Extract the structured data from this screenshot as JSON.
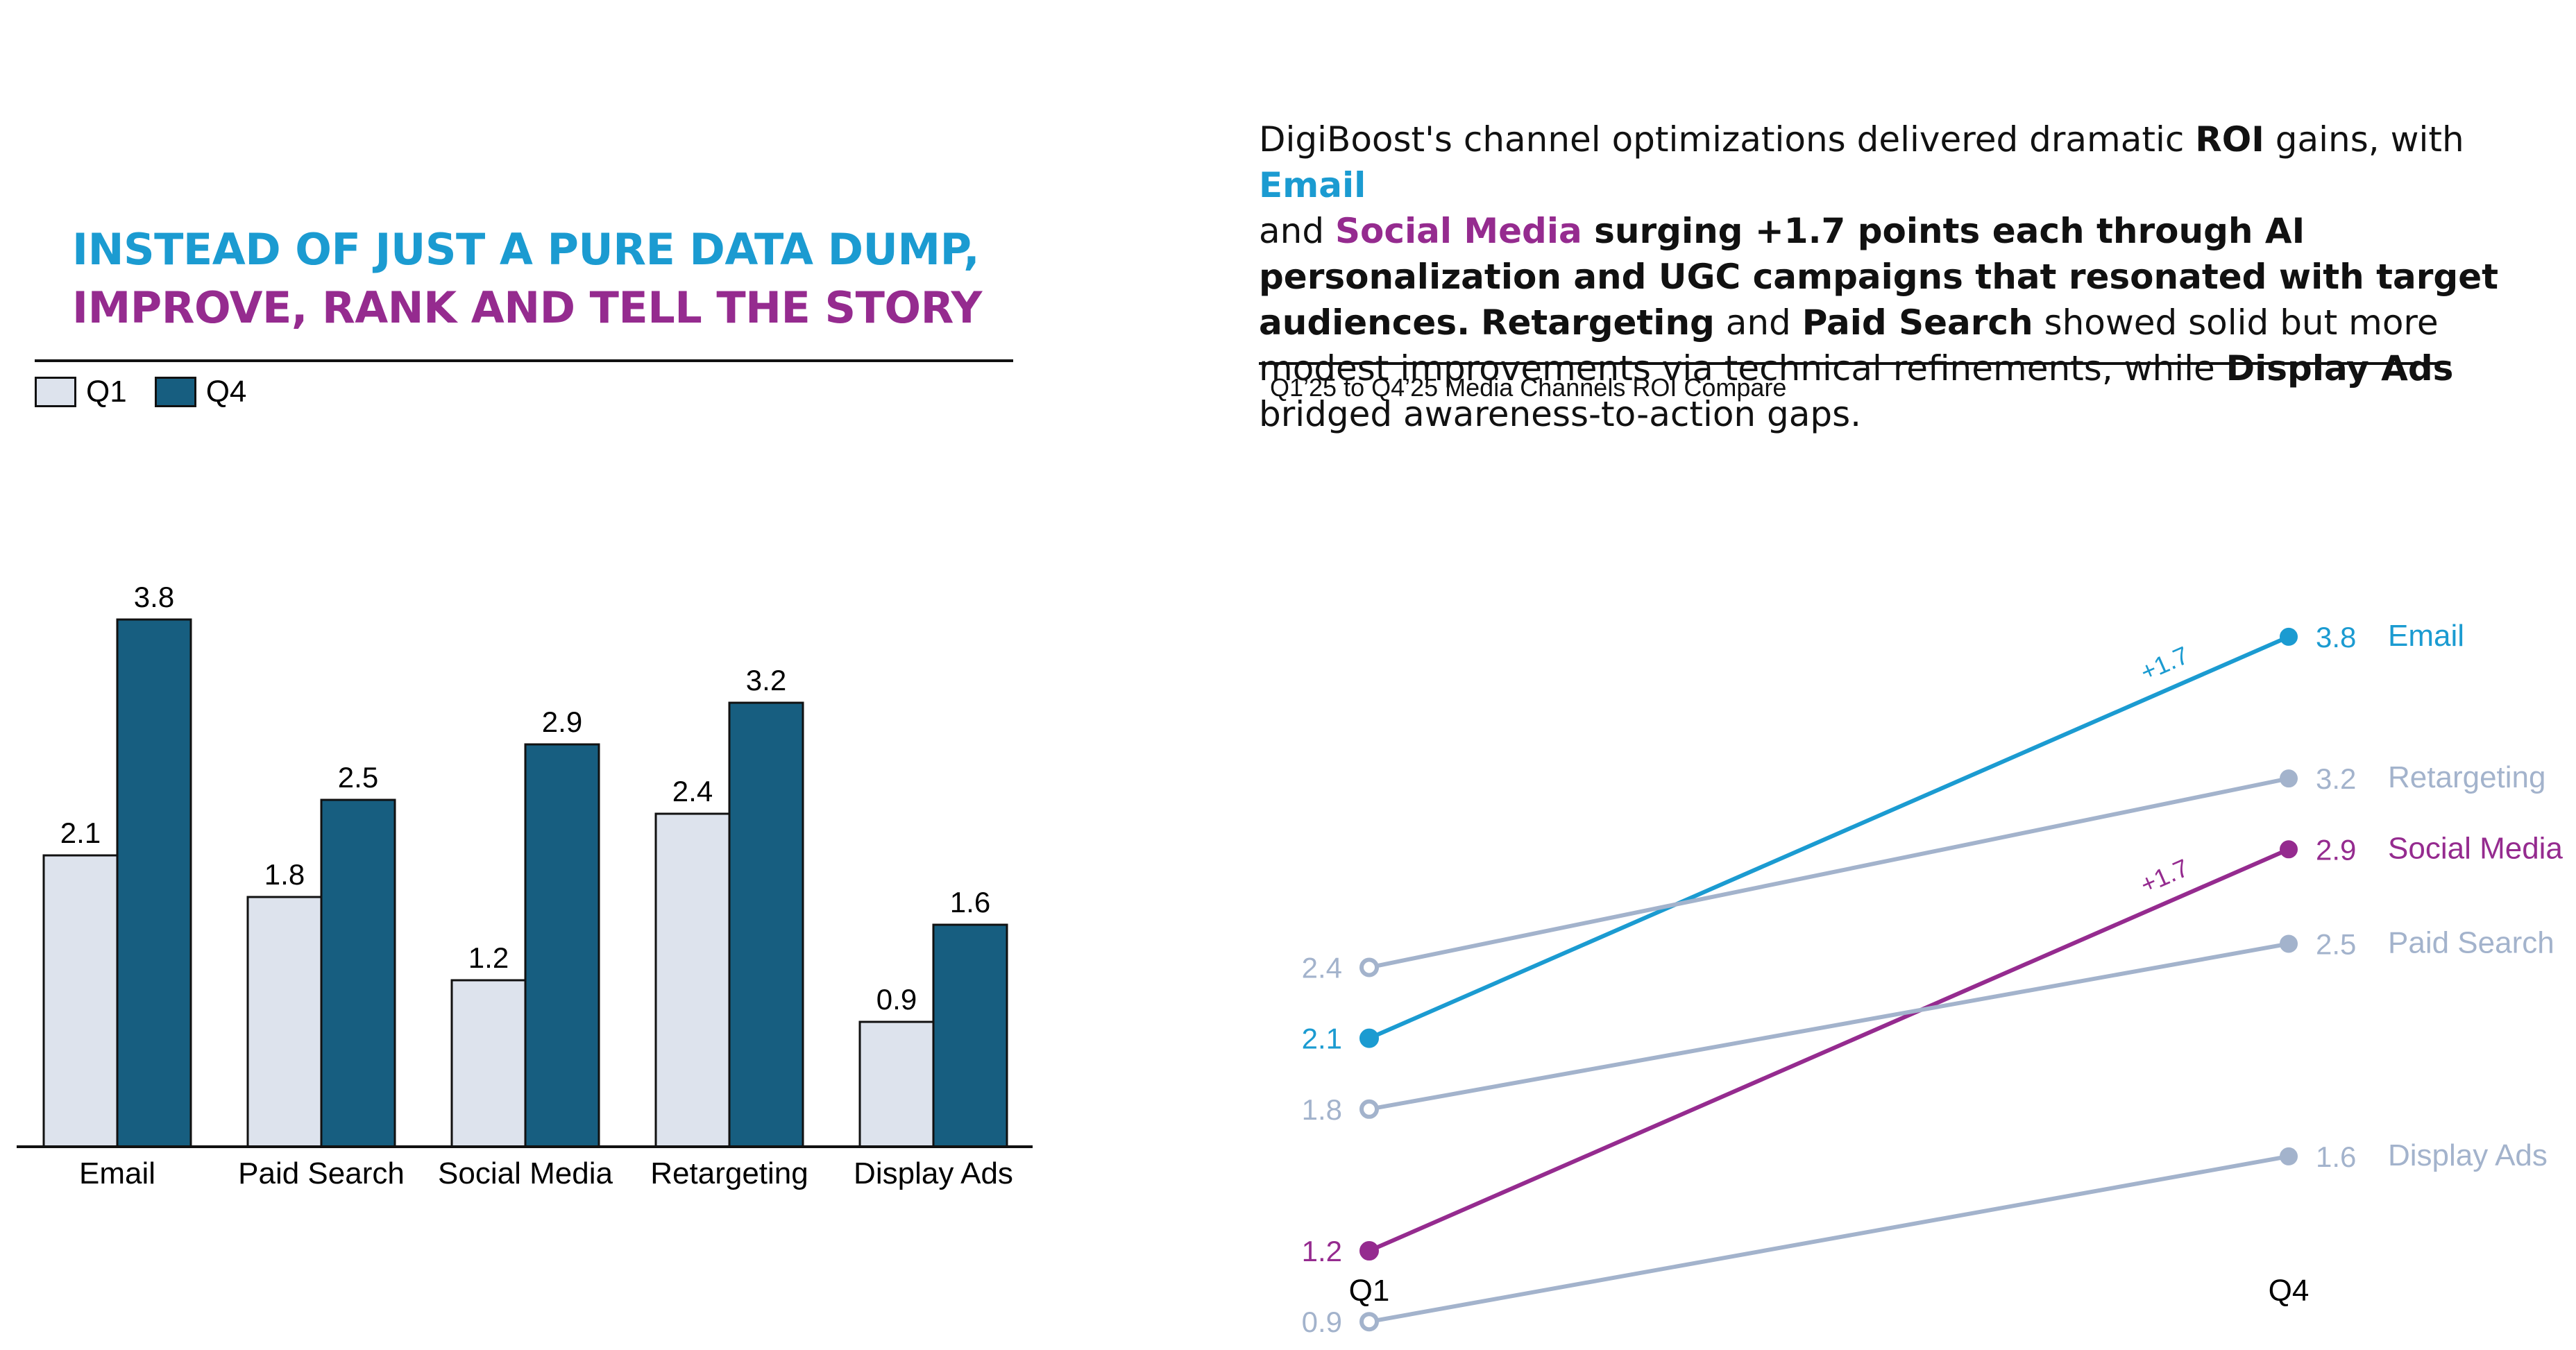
{
  "headline": {
    "line1": "INSTEAD OF JUST A PURE DATA DUMP,",
    "line2": "IMPROVE, RANK AND TELL THE STORY"
  },
  "colors": {
    "q1_fill": "#dde3ed",
    "q4_fill": "#175e80",
    "email": "#1b9bd1",
    "social": "#952b8f",
    "muted": "#a3b3cc"
  },
  "story": {
    "p1": "DigiBoost's channel optimizations delivered dramatic ",
    "roi": "ROI",
    "p2": " gains, with ",
    "email": "Email",
    "p3": " and ",
    "social": "Social Media",
    "p4": " surging +1.7 points each through AI personalization and UGC campaigns that resonated with target audiences.",
    "p5": " ",
    "retargeting": "Retargeting",
    "p6": " and ",
    "paid": "Paid Search",
    "p7": " showed solid but more modest improvements via technical refinements, while ",
    "display": "Display Ads",
    "p8": " bridged awareness-to-action gaps."
  },
  "subtitle": "Q1’25 to Q4’25  Media Channels ROI Compare",
  "chart_data": [
    {
      "type": "bar",
      "categories": [
        "Email",
        "Paid Search",
        "Social Media",
        "Retargeting",
        "Display Ads"
      ],
      "series": [
        {
          "name": "Q1",
          "values": [
            2.1,
            1.8,
            1.2,
            2.4,
            0.9
          ]
        },
        {
          "name": "Q4",
          "values": [
            3.8,
            2.5,
            2.9,
            3.2,
            1.6
          ]
        }
      ],
      "legend": [
        "Q1",
        "Q4"
      ],
      "legend_position": "top-left",
      "ylim": [
        0,
        4
      ],
      "grid": false
    },
    {
      "type": "line",
      "title": "Q1’25 to Q4’25  Media Channels ROI Compare",
      "x": [
        "Q1",
        "Q4"
      ],
      "series": [
        {
          "name": "Email",
          "values": [
            2.1,
            3.8
          ],
          "delta": "+1.7",
          "highlight": "email"
        },
        {
          "name": "Retargeting",
          "values": [
            2.4,
            3.2
          ],
          "highlight": "muted"
        },
        {
          "name": "Social Media",
          "values": [
            1.2,
            2.9
          ],
          "delta": "+1.7",
          "highlight": "social"
        },
        {
          "name": "Paid Search",
          "values": [
            1.8,
            2.5
          ],
          "highlight": "muted"
        },
        {
          "name": "Display Ads",
          "values": [
            0.9,
            1.6
          ],
          "highlight": "muted"
        }
      ],
      "grid": false
    }
  ]
}
